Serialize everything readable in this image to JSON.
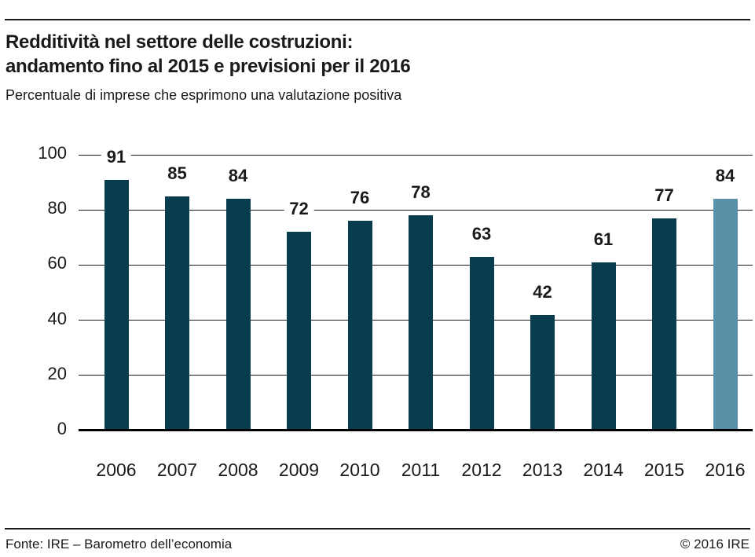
{
  "header": {
    "title_line1": "Redditività nel settore delle costruzioni:",
    "title_line2": "andamento fino al 2015 e previsioni per il 2016",
    "subtitle": "Percentuale di imprese che esprimono una valutazione positiva"
  },
  "chart_data": {
    "type": "bar",
    "title": "Redditività nel settore delle costruzioni: andamento fino al 2015 e previsioni per il 2016",
    "subtitle": "Percentuale di imprese che esprimono una valutazione positiva",
    "categories": [
      "2006",
      "2007",
      "2008",
      "2009",
      "2010",
      "2011",
      "2012",
      "2013",
      "2014",
      "2015",
      "2016"
    ],
    "values": [
      91,
      85,
      84,
      72,
      76,
      78,
      63,
      42,
      61,
      77,
      84
    ],
    "highlight_index": 10,
    "highlight_meaning": "previsione 2016",
    "xlabel": "",
    "ylabel": "",
    "ylim": [
      0,
      100
    ],
    "yticks": [
      0,
      20,
      40,
      60,
      80,
      100
    ],
    "grid": true,
    "legend": "none",
    "bar_color": "#0a3c50",
    "highlight_color": "#5991a8",
    "value_labels": true
  },
  "footer": {
    "source": "Fonte: IRE – Barometro dell’economia",
    "copyright": "© 2016 IRE"
  }
}
